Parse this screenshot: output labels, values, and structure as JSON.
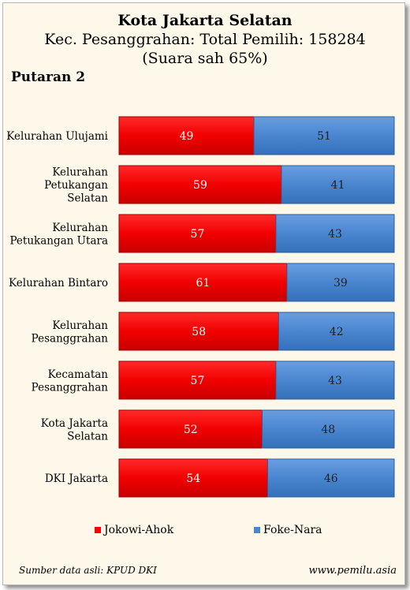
{
  "chart_data": {
    "type": "bar",
    "stacked": true,
    "orientation": "horizontal",
    "title": "Kota Jakarta Selatan",
    "subtitle_line1": "Kec. Pesanggrahan: Total Pemilih: 158284",
    "subtitle_line2": "(Suara sah 65%)",
    "round_label": "Putaran 2",
    "categories": [
      [
        "Kelurahan Ulujami"
      ],
      [
        "Kelurahan",
        "Petukangan",
        "Selatan"
      ],
      [
        "Kelurahan",
        "Petukangan Utara"
      ],
      [
        "Kelurahan Bintaro"
      ],
      [
        "Kelurahan",
        "Pesanggrahan"
      ],
      [
        "Kecamatan",
        "Pesanggrahan"
      ],
      [
        "Kota Jakarta",
        "Selatan"
      ],
      [
        "DKI Jakarta"
      ]
    ],
    "series": [
      {
        "name": "Jokowi-Ahok",
        "color": "#ff0000",
        "values": [
          49,
          59,
          57,
          61,
          58,
          57,
          52,
          54
        ]
      },
      {
        "name": "Foke-Nara",
        "color": "#4a86d0",
        "values": [
          51,
          41,
          43,
          39,
          42,
          43,
          48,
          46
        ]
      }
    ],
    "xlim": [
      0,
      100
    ],
    "legend_position": "bottom",
    "grid": false
  },
  "footer": {
    "source": "Sumber data asli: KPUD DKI",
    "website": "www.pemilu.asia"
  }
}
